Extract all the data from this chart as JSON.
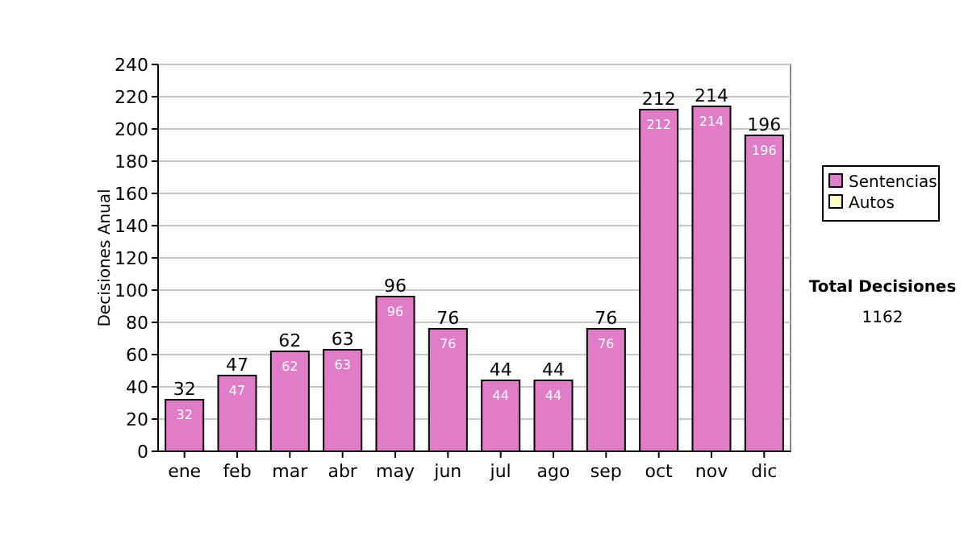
{
  "chart_data": {
    "type": "bar",
    "ylabel": "Decisiones Anual",
    "categories": [
      "ene",
      "feb",
      "mar",
      "abr",
      "may",
      "jun",
      "jul",
      "ago",
      "sep",
      "oct",
      "nov",
      "dic"
    ],
    "series": [
      {
        "name": "Sentencias",
        "color": "#e07cc8",
        "values": [
          32,
          47,
          62,
          63,
          96,
          76,
          44,
          44,
          76,
          212,
          214,
          196
        ],
        "value_labels": [
          "32",
          "47",
          "62",
          "63",
          "96",
          "76",
          "44",
          "44",
          "76",
          "212",
          "214",
          "196"
        ]
      },
      {
        "name": "Autos",
        "color": "#ffffc0",
        "values": [
          0,
          0,
          0,
          0,
          0,
          0,
          0,
          0,
          0,
          0,
          0,
          0
        ]
      }
    ],
    "totals": [
      "32",
      "47",
      "62",
      "63",
      "96",
      "76",
      "44",
      "44",
      "76",
      "212",
      "214",
      "196"
    ],
    "ylim": [
      0,
      240
    ],
    "yticks": [
      0,
      20,
      40,
      60,
      80,
      100,
      120,
      140,
      160,
      180,
      200,
      220,
      240
    ],
    "grid": "y",
    "legend": "right",
    "annotations": [
      "Total Decisiones",
      "1162"
    ]
  }
}
